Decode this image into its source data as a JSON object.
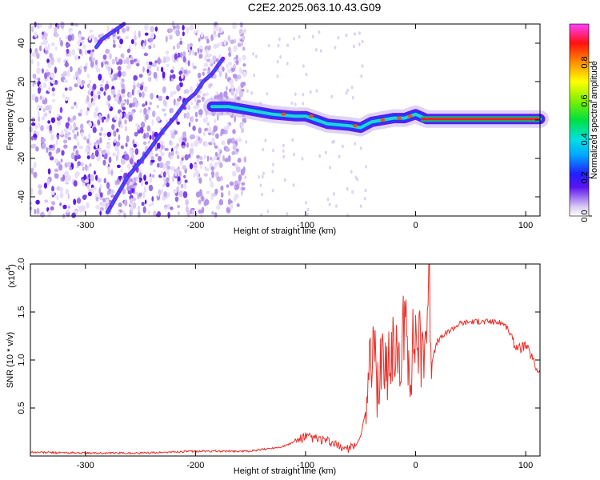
{
  "title": "C2E2.2025.063.10.43.G09",
  "colors": {
    "snr_line": "#e8302a",
    "background_scatter": "#c9b6ef",
    "track_core": "#2a1cd6"
  },
  "chart_data": [
    {
      "type": "heatmap",
      "title": "C2E2.2025.063.10.43.G09",
      "xlabel": "Height of straight line (km)",
      "ylabel": "Frequency (Hz)",
      "xlim": [
        -350,
        113
      ],
      "ylim": [
        -50,
        50
      ],
      "x_ticks": [
        -300,
        -200,
        -100,
        0,
        100
      ],
      "y_ticks": [
        -40,
        -20,
        0,
        20,
        40
      ],
      "colorbar": {
        "label": "Normalized spectral amplitude",
        "range": [
          0,
          1
        ],
        "ticks": [
          0.0,
          0.2,
          0.4,
          0.6,
          0.8
        ],
        "tick_labels": [
          "0.0",
          "0.2",
          "0.4",
          "0.6",
          "0.8"
        ]
      },
      "main_track": {
        "x": [
          -185,
          -170,
          -150,
          -130,
          -110,
          -100,
          -80,
          -60,
          -50,
          -40,
          -30,
          -20,
          -10,
          0,
          10,
          113
        ],
        "y": [
          7,
          7,
          5,
          3,
          2,
          2,
          -2,
          -3,
          -4,
          -1,
          0,
          1,
          1,
          3,
          0.5,
          0.5
        ]
      },
      "descending_track": {
        "x": [
          -280,
          -262,
          -245,
          -230,
          -218,
          -208,
          -200,
          -193,
          -185,
          -175
        ],
        "y": [
          -48,
          -30,
          -18,
          -6,
          2,
          10,
          14,
          20,
          24,
          32
        ]
      },
      "ascending_track": {
        "x": [
          -290,
          -285,
          -275,
          -270,
          -265
        ],
        "y": [
          38,
          42,
          46,
          48,
          50
        ]
      },
      "grid": false,
      "legend": "colorbar-right"
    },
    {
      "type": "line",
      "xlabel": "Height of straight line (km)",
      "ylabel": "SNR (10 * v/v)",
      "multiplier_label": "(x10",
      "multiplier_exponent": "4",
      "xlim": [
        -350,
        113
      ],
      "ylim": [
        0,
        2.0
      ],
      "x_ticks": [
        -300,
        -200,
        -100,
        0,
        100
      ],
      "y_ticks": [
        0.5,
        1.0,
        1.5,
        2.0
      ],
      "y_tick_labels": [
        "0.5",
        "1.0",
        "1.5",
        "2.0"
      ],
      "series": [
        {
          "x": [
            -350,
            -300,
            -250,
            -200,
            -150,
            -120,
            -110,
            -100,
            -90,
            -80,
            -70,
            -60,
            -55,
            -50,
            -45,
            -40,
            -38,
            -35,
            -30,
            -25,
            -20,
            -15,
            -10,
            -5,
            0,
            5,
            10,
            12,
            15,
            20,
            30,
            40,
            50,
            60,
            70,
            80,
            85,
            90,
            95,
            100,
            105,
            110,
            113
          ],
          "y": [
            0.04,
            0.03,
            0.03,
            0.05,
            0.05,
            0.1,
            0.15,
            0.2,
            0.18,
            0.15,
            0.1,
            0.08,
            0.1,
            0.2,
            0.5,
            0.9,
            1.05,
            0.6,
            1.2,
            0.8,
            1.3,
            0.8,
            1.4,
            1.0,
            1.3,
            1.1,
            1.4,
            1.9,
            1.0,
            1.2,
            1.3,
            1.38,
            1.4,
            1.4,
            1.4,
            1.38,
            1.3,
            1.15,
            1.12,
            1.15,
            1.05,
            0.9,
            0.9
          ]
        }
      ],
      "grid": false
    }
  ]
}
